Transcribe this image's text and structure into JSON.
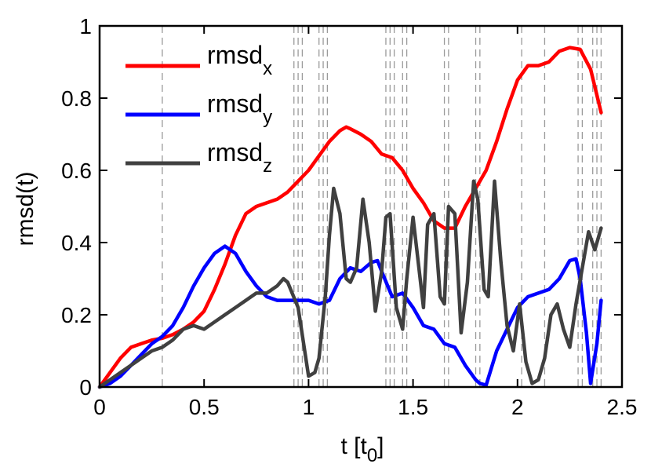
{
  "chart_data": {
    "type": "line",
    "xlabel": "t [t",
    "xlabel_sub": "0",
    "xlabel_close": "]",
    "ylabel": "rmsd(t)",
    "xlim": [
      0,
      2.5
    ],
    "ylim": [
      0,
      1
    ],
    "xticks": [
      0,
      0.5,
      1,
      1.5,
      2,
      2.5
    ],
    "xtick_labels": [
      "0",
      "0.5",
      "1",
      "1.5",
      "2",
      "2.5"
    ],
    "yticks": [
      0,
      0.2,
      0.4,
      0.6,
      0.8,
      1
    ],
    "ytick_labels": [
      "0",
      "0.2",
      "0.4",
      "0.6",
      "0.8",
      "1"
    ],
    "grid": false,
    "legend_position": "top-left",
    "vlines": [
      0.3,
      0.93,
      0.95,
      0.97,
      1.05,
      1.07,
      1.09,
      1.37,
      1.39,
      1.41,
      1.45,
      1.47,
      1.65,
      1.67,
      1.8,
      1.82,
      2.02,
      2.13,
      2.29,
      2.31,
      2.36,
      2.38,
      2.4
    ],
    "series": [
      {
        "name": "rmsd",
        "name_sub": "x",
        "color": "#ff0000",
        "x": [
          0,
          0.05,
          0.1,
          0.15,
          0.2,
          0.25,
          0.3,
          0.35,
          0.4,
          0.45,
          0.5,
          0.55,
          0.6,
          0.65,
          0.7,
          0.75,
          0.8,
          0.85,
          0.9,
          0.95,
          1.0,
          1.05,
          1.1,
          1.15,
          1.18,
          1.2,
          1.25,
          1.3,
          1.35,
          1.4,
          1.45,
          1.5,
          1.55,
          1.6,
          1.65,
          1.7,
          1.75,
          1.8,
          1.85,
          1.9,
          1.95,
          2.0,
          2.05,
          2.1,
          2.15,
          2.2,
          2.25,
          2.3,
          2.35,
          2.4
        ],
        "values": [
          0,
          0.04,
          0.08,
          0.11,
          0.12,
          0.13,
          0.135,
          0.145,
          0.16,
          0.18,
          0.21,
          0.27,
          0.34,
          0.42,
          0.48,
          0.5,
          0.51,
          0.52,
          0.54,
          0.57,
          0.6,
          0.64,
          0.68,
          0.71,
          0.72,
          0.715,
          0.7,
          0.68,
          0.645,
          0.635,
          0.6,
          0.55,
          0.51,
          0.46,
          0.44,
          0.44,
          0.5,
          0.55,
          0.6,
          0.68,
          0.77,
          0.85,
          0.89,
          0.89,
          0.9,
          0.93,
          0.94,
          0.935,
          0.88,
          0.76
        ]
      },
      {
        "name": "rmsd",
        "name_sub": "y",
        "color": "#0000ff",
        "x": [
          0,
          0.05,
          0.1,
          0.15,
          0.2,
          0.25,
          0.3,
          0.35,
          0.4,
          0.45,
          0.5,
          0.55,
          0.6,
          0.65,
          0.7,
          0.75,
          0.8,
          0.85,
          0.9,
          0.95,
          1.0,
          1.05,
          1.1,
          1.15,
          1.2,
          1.25,
          1.3,
          1.33,
          1.35,
          1.4,
          1.45,
          1.5,
          1.55,
          1.6,
          1.65,
          1.7,
          1.75,
          1.8,
          1.82,
          1.85,
          1.9,
          1.95,
          2.0,
          2.05,
          2.1,
          2.15,
          2.2,
          2.25,
          2.28,
          2.3,
          2.33,
          2.35,
          2.38,
          2.4
        ],
        "values": [
          0,
          0.01,
          0.03,
          0.06,
          0.09,
          0.12,
          0.14,
          0.17,
          0.22,
          0.28,
          0.33,
          0.37,
          0.39,
          0.37,
          0.32,
          0.28,
          0.25,
          0.24,
          0.24,
          0.24,
          0.24,
          0.23,
          0.24,
          0.3,
          0.33,
          0.32,
          0.345,
          0.35,
          0.32,
          0.25,
          0.26,
          0.22,
          0.17,
          0.16,
          0.12,
          0.11,
          0.06,
          0.02,
          0.01,
          0.005,
          0.1,
          0.16,
          0.22,
          0.25,
          0.26,
          0.27,
          0.3,
          0.35,
          0.355,
          0.3,
          0.15,
          0.01,
          0.12,
          0.24
        ]
      },
      {
        "name": "rmsd",
        "name_sub": "z",
        "color": "#404040",
        "x": [
          0,
          0.05,
          0.1,
          0.15,
          0.2,
          0.25,
          0.3,
          0.35,
          0.4,
          0.45,
          0.5,
          0.55,
          0.6,
          0.65,
          0.7,
          0.75,
          0.8,
          0.85,
          0.88,
          0.9,
          0.95,
          1.0,
          1.03,
          1.05,
          1.08,
          1.1,
          1.12,
          1.15,
          1.18,
          1.2,
          1.23,
          1.26,
          1.29,
          1.32,
          1.35,
          1.37,
          1.39,
          1.42,
          1.45,
          1.47,
          1.5,
          1.53,
          1.55,
          1.57,
          1.6,
          1.63,
          1.65,
          1.67,
          1.7,
          1.73,
          1.76,
          1.79,
          1.81,
          1.84,
          1.86,
          1.89,
          1.92,
          1.95,
          1.98,
          2.01,
          2.04,
          2.07,
          2.1,
          2.13,
          2.16,
          2.19,
          2.22,
          2.25,
          2.28,
          2.31,
          2.34,
          2.37,
          2.4
        ],
        "values": [
          0,
          0.02,
          0.04,
          0.06,
          0.08,
          0.1,
          0.11,
          0.13,
          0.16,
          0.17,
          0.16,
          0.18,
          0.2,
          0.22,
          0.24,
          0.26,
          0.26,
          0.28,
          0.3,
          0.29,
          0.22,
          0.03,
          0.04,
          0.08,
          0.25,
          0.42,
          0.55,
          0.48,
          0.3,
          0.29,
          0.33,
          0.52,
          0.4,
          0.21,
          0.32,
          0.47,
          0.48,
          0.22,
          0.16,
          0.3,
          0.47,
          0.32,
          0.22,
          0.45,
          0.48,
          0.25,
          0.23,
          0.5,
          0.48,
          0.15,
          0.29,
          0.57,
          0.52,
          0.27,
          0.25,
          0.57,
          0.35,
          0.17,
          0.1,
          0.23,
          0.07,
          0.01,
          0.02,
          0.08,
          0.2,
          0.23,
          0.16,
          0.11,
          0.23,
          0.33,
          0.43,
          0.38,
          0.44
        ]
      }
    ]
  }
}
